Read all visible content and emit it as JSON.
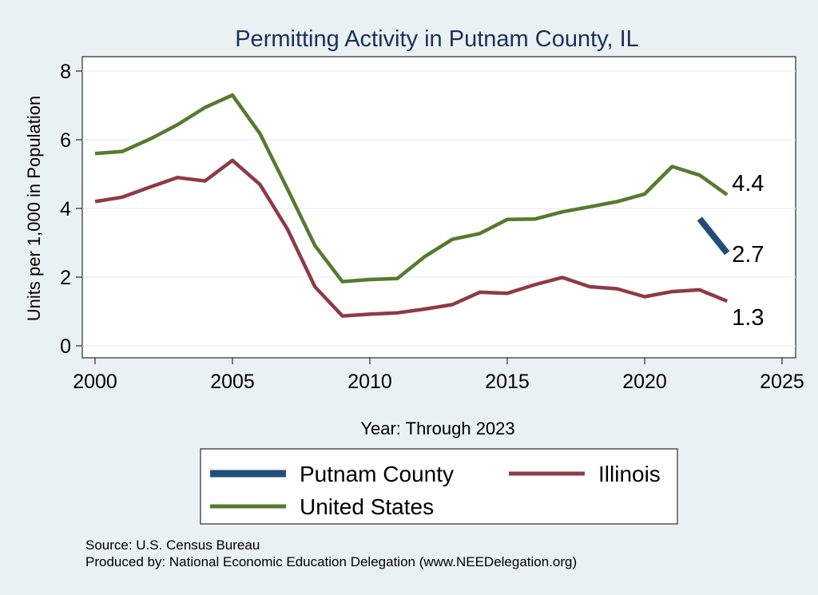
{
  "chart_data": {
    "type": "line",
    "title": "Permitting Activity in Putnam County, IL",
    "xlabel": "Year: Through 2023",
    "ylabel": "Units per 1,000 in Population",
    "xlim": [
      2000,
      2025
    ],
    "ylim": [
      0,
      8
    ],
    "xticks": [
      "2000",
      "2005",
      "2010",
      "2015",
      "2020",
      "2025"
    ],
    "yticks": [
      "0",
      "2",
      "4",
      "6",
      "8"
    ],
    "grid": true,
    "legend_position": "bottom",
    "series": [
      {
        "name": "Putnam County",
        "color": "#1f4e79",
        "x": [
          2022,
          2023
        ],
        "y": [
          3.7,
          2.7
        ],
        "end_label": "2.7"
      },
      {
        "name": "Illinois",
        "color": "#8f3a45",
        "x": [
          2000,
          2001,
          2002,
          2003,
          2004,
          2005,
          2006,
          2007,
          2008,
          2009,
          2010,
          2011,
          2012,
          2013,
          2014,
          2015,
          2016,
          2017,
          2018,
          2019,
          2020,
          2021,
          2022,
          2023
        ],
        "y": [
          4.2,
          4.33,
          4.62,
          4.9,
          4.8,
          5.4,
          4.7,
          3.4,
          1.72,
          0.87,
          0.92,
          0.96,
          1.07,
          1.2,
          1.56,
          1.53,
          1.78,
          1.99,
          1.72,
          1.66,
          1.43,
          1.58,
          1.63,
          1.3
        ],
        "end_label": "1.3"
      },
      {
        "name": "United States",
        "color": "#567a2e",
        "x": [
          2000,
          2001,
          2002,
          2003,
          2004,
          2005,
          2006,
          2007,
          2008,
          2009,
          2010,
          2011,
          2012,
          2013,
          2014,
          2015,
          2016,
          2017,
          2018,
          2019,
          2020,
          2021,
          2022,
          2023
        ],
        "y": [
          5.6,
          5.66,
          6.02,
          6.44,
          6.94,
          7.3,
          6.18,
          4.57,
          2.92,
          1.87,
          1.93,
          1.96,
          2.6,
          3.1,
          3.27,
          3.68,
          3.69,
          3.9,
          4.05,
          4.2,
          4.42,
          5.22,
          4.97,
          4.4
        ],
        "end_label": "4.4"
      }
    ],
    "notes": [
      "Source: U.S. Census Bureau",
      "Produced by: National Economic Education Delegation (www.NEEDelegation.org)"
    ]
  }
}
